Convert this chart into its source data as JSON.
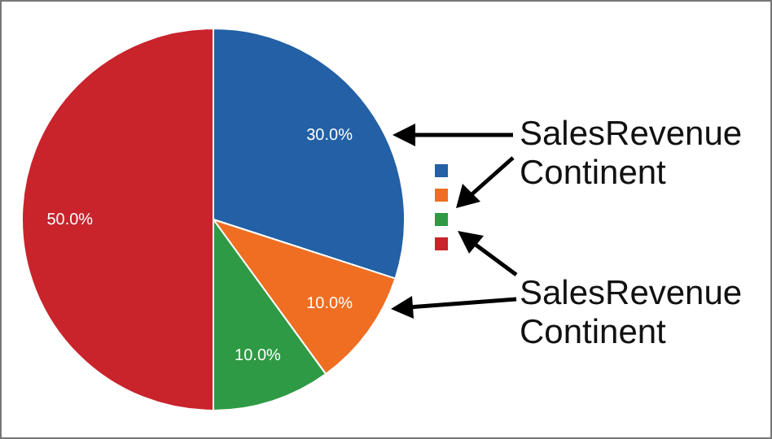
{
  "chart_data": {
    "type": "pie",
    "categories": [
      null,
      null,
      null,
      null
    ],
    "values": [
      30,
      10,
      10,
      50
    ],
    "colors": [
      "#2360a5",
      "#ef6e22",
      "#2f9a45",
      "#c9232c"
    ],
    "value_labels": [
      "30.0%",
      "10.0%",
      "10.0%",
      "50.0%"
    ],
    "annotations": [
      "SalesRevenue Continent",
      "SalesRevenue Continent"
    ]
  }
}
